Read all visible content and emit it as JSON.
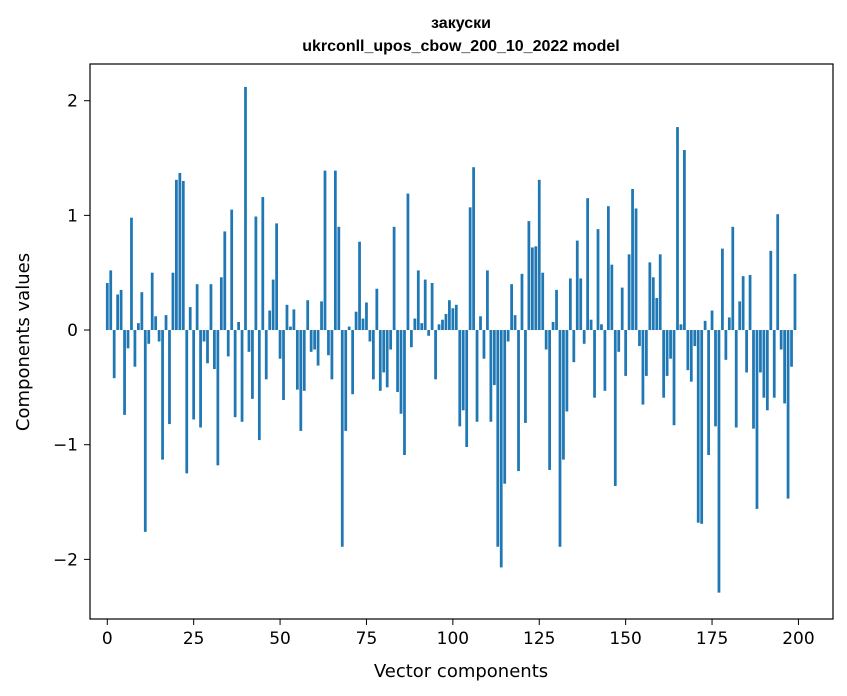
{
  "chart_data": {
    "type": "bar",
    "title": "закуски",
    "subtitle": "ukrconll_upos_cbow_200_10_2022 model",
    "xlabel": "Vector components",
    "ylabel": "Components values",
    "xlim": [
      -5,
      210
    ],
    "ylim": [
      -2.52,
      2.32
    ],
    "xticks": [
      0,
      25,
      50,
      75,
      100,
      125,
      150,
      175,
      200
    ],
    "xtick_labels": [
      "0",
      "25",
      "50",
      "75",
      "100",
      "125",
      "150",
      "175",
      "200"
    ],
    "yticks": [
      -2,
      -1,
      0,
      1,
      2
    ],
    "ytick_labels": [
      "−2",
      "−1",
      "0",
      "1",
      "2"
    ],
    "grid": false,
    "legend": false,
    "bar_color": "#1f77b4",
    "x": [
      0,
      1,
      2,
      3,
      4,
      5,
      6,
      7,
      8,
      9,
      10,
      11,
      12,
      13,
      14,
      15,
      16,
      17,
      18,
      19,
      20,
      21,
      22,
      23,
      24,
      25,
      26,
      27,
      28,
      29,
      30,
      31,
      32,
      33,
      34,
      35,
      36,
      37,
      38,
      39,
      40,
      41,
      42,
      43,
      44,
      45,
      46,
      47,
      48,
      49,
      50,
      51,
      52,
      53,
      54,
      55,
      56,
      57,
      58,
      59,
      60,
      61,
      62,
      63,
      64,
      65,
      66,
      67,
      68,
      69,
      70,
      71,
      72,
      73,
      74,
      75,
      76,
      77,
      78,
      79,
      80,
      81,
      82,
      83,
      84,
      85,
      86,
      87,
      88,
      89,
      90,
      91,
      92,
      93,
      94,
      95,
      96,
      97,
      98,
      99,
      100,
      101,
      102,
      103,
      104,
      105,
      106,
      107,
      108,
      109,
      110,
      111,
      112,
      113,
      114,
      115,
      116,
      117,
      118,
      119,
      120,
      121,
      122,
      123,
      124,
      125,
      126,
      127,
      128,
      129,
      130,
      131,
      132,
      133,
      134,
      135,
      136,
      137,
      138,
      139,
      140,
      141,
      142,
      143,
      144,
      145,
      146,
      147,
      148,
      149,
      150,
      151,
      152,
      153,
      154,
      155,
      156,
      157,
      158,
      159,
      160,
      161,
      162,
      163,
      164,
      165,
      166,
      167,
      168,
      169,
      170,
      171,
      172,
      173,
      174,
      175,
      176,
      177,
      178,
      179,
      180,
      181,
      182,
      183,
      184,
      185,
      186,
      187,
      188,
      189,
      190,
      191,
      192,
      193,
      194,
      195,
      196,
      197,
      198,
      199
    ],
    "values": [
      0.41,
      0.52,
      -0.42,
      0.31,
      0.35,
      -0.74,
      -0.16,
      0.98,
      -0.32,
      0.06,
      0.33,
      -1.76,
      -0.12,
      0.5,
      0.12,
      -0.1,
      -1.13,
      0.13,
      -0.82,
      0.5,
      1.31,
      1.37,
      1.3,
      -1.25,
      0.2,
      -0.78,
      0.4,
      -0.85,
      -0.1,
      -0.29,
      0.4,
      -0.34,
      -1.18,
      0.46,
      0.86,
      -0.23,
      1.05,
      -0.76,
      0.07,
      -0.8,
      2.12,
      -0.19,
      -0.6,
      0.99,
      -0.96,
      1.16,
      -0.43,
      0.17,
      0.44,
      0.93,
      -0.25,
      -0.61,
      0.22,
      0.03,
      0.18,
      -0.52,
      -0.88,
      -0.53,
      0.26,
      -0.19,
      -0.17,
      -0.31,
      0.25,
      1.39,
      -0.22,
      -0.43,
      1.39,
      0.9,
      -1.89,
      -0.88,
      0.03,
      -0.56,
      0.16,
      0.77,
      0.1,
      0.24,
      -0.1,
      -0.43,
      0.36,
      -0.53,
      -0.37,
      -0.5,
      -0.17,
      0.9,
      -0.54,
      -0.73,
      -1.09,
      1.19,
      -0.15,
      0.1,
      0.52,
      0.06,
      0.44,
      -0.05,
      0.41,
      -0.43,
      0.05,
      0.09,
      0.14,
      0.26,
      0.19,
      0.22,
      -0.84,
      -0.7,
      -1.02,
      1.07,
      1.42,
      -0.8,
      0.12,
      -0.25,
      0.52,
      -0.8,
      -0.48,
      -1.89,
      -2.07,
      -1.34,
      -0.1,
      0.4,
      0.13,
      -1.23,
      0.49,
      -0.81,
      0.95,
      0.72,
      0.73,
      1.31,
      0.5,
      -0.17,
      -1.22,
      0.07,
      0.35,
      -1.89,
      -1.13,
      -0.71,
      0.45,
      -0.28,
      0.78,
      0.45,
      -0.12,
      1.15,
      0.09,
      -0.59,
      0.88,
      0.05,
      -0.53,
      1.08,
      0.57,
      -1.36,
      -0.19,
      0.37,
      -0.4,
      0.66,
      1.23,
      1.06,
      -0.14,
      -0.65,
      -0.4,
      0.59,
      0.46,
      0.28,
      0.66,
      -0.59,
      -0.4,
      -0.25,
      -0.83,
      1.77,
      0.05,
      1.57,
      -0.35,
      -0.45,
      -0.14,
      -1.68,
      -1.69,
      0.08,
      -1.09,
      0.17,
      -0.84,
      -2.29,
      0.71,
      -0.26,
      0.11,
      0.9,
      -0.85,
      0.25,
      0.47,
      -0.37,
      0.48,
      -0.86,
      -1.56,
      -0.37,
      -0.59,
      -0.7,
      0.69,
      -0.59,
      1.01,
      -0.17,
      -0.64,
      -1.47,
      -0.32,
      0.49
    ]
  }
}
